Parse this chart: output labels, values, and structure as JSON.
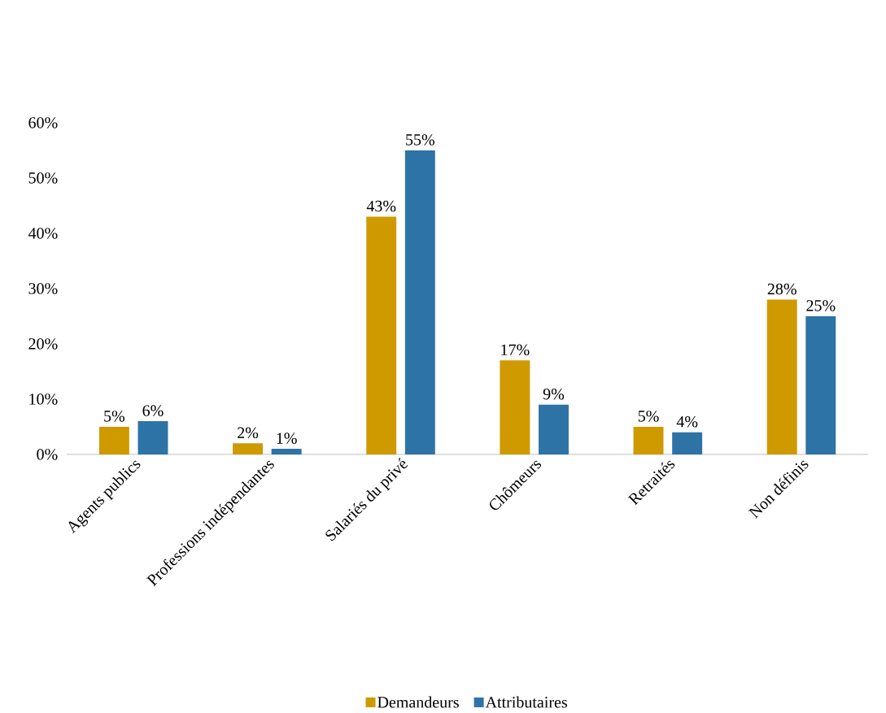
{
  "chart_data": {
    "type": "bar",
    "categories": [
      "Agents publics",
      "Professions indépendantes",
      "Salariés du privé",
      "Chômeurs",
      "Retraités",
      "Non définis"
    ],
    "series": [
      {
        "name": "Demandeurs",
        "color": "#cf9900",
        "values": [
          5,
          2,
          43,
          17,
          5,
          28
        ],
        "value_labels": [
          "5%",
          "2%",
          "43%",
          "17%",
          "5%",
          "28%"
        ]
      },
      {
        "name": "Attributaires",
        "color": "#2e73a5",
        "values": [
          6,
          1,
          55,
          9,
          4,
          25
        ],
        "value_labels": [
          "6%",
          "1%",
          "55%",
          "9%",
          "4%",
          "25%"
        ]
      }
    ],
    "ylim": [
      0,
      60
    ],
    "yticks": [
      {
        "value": 0,
        "label": "0%"
      },
      {
        "value": 10,
        "label": "10%"
      },
      {
        "value": 20,
        "label": "20%"
      },
      {
        "value": 30,
        "label": "30%"
      },
      {
        "value": 40,
        "label": "40%"
      },
      {
        "value": 50,
        "label": "50%"
      },
      {
        "value": 60,
        "label": "60%"
      }
    ],
    "grid": false,
    "legend": "bottom"
  }
}
